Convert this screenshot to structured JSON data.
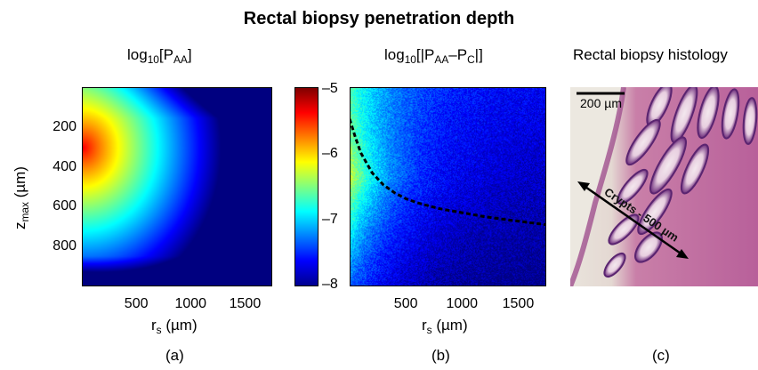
{
  "figure": {
    "title": "Rectal biopsy penetration depth"
  },
  "chart_data": [
    {
      "type": "heatmap",
      "panel": "(a)",
      "title_main": "log",
      "title_sub": "10",
      "title_rest_open": "[P",
      "title_rest_sub": "AA",
      "title_rest_close": "]",
      "xlabel_main": "r",
      "xlabel_sub": "s",
      "xlabel_unit": " (µm)",
      "ylabel_main": "z",
      "ylabel_sub": "max",
      "ylabel_unit": " (µm)",
      "x_ticks": [
        "500",
        "1000",
        "1500"
      ],
      "x_tick_values": [
        500,
        1000,
        1500
      ],
      "y_ticks": [
        "200",
        "400",
        "600",
        "800"
      ],
      "y_tick_values": [
        200,
        400,
        600,
        800
      ],
      "xlim": [
        0,
        1750
      ],
      "ylim": [
        0,
        1000
      ],
      "y_reversed": true,
      "colormap": "jet",
      "color_range": [
        -8,
        -5
      ]
    },
    {
      "type": "heatmap",
      "panel": "(b)",
      "title_main": "log",
      "title_sub": "10",
      "title_rest_open": "[|P",
      "title_rest_sub": "AA",
      "title_rest_mid": "–P",
      "title_rest_sub2": "C",
      "title_rest_close": "|]",
      "xlabel_main": "r",
      "xlabel_sub": "s",
      "xlabel_unit": " (µm)",
      "x_ticks": [
        "500",
        "1000",
        "1500"
      ],
      "x_tick_values": [
        500,
        1000,
        1500
      ],
      "xlim": [
        0,
        1750
      ],
      "ylim": [
        0,
        1000
      ],
      "y_reversed": true,
      "colormap": "jet",
      "color_range": [
        -8,
        -5
      ],
      "dashed_contour": {
        "color": "#000000",
        "x": [
          0,
          50,
          100,
          200,
          300,
          400,
          500,
          600,
          700,
          800,
          1000,
          1200,
          1400,
          1600,
          1750
        ],
        "y": [
          160,
          250,
          330,
          430,
          490,
          530,
          560,
          580,
          595,
          610,
          630,
          650,
          665,
          680,
          690
        ]
      }
    },
    {
      "type": "colorbar",
      "ticks": [
        "–5",
        "–6",
        "–7",
        "–8"
      ],
      "tick_values": [
        -5,
        -6,
        -7,
        -8
      ],
      "range": [
        -8,
        -5
      ]
    }
  ],
  "histology": {
    "title": "Rectal biopsy histology",
    "scale_bar_label": "200 µm",
    "annotation": "Crypts - 500 µm",
    "panel": "(c)"
  }
}
